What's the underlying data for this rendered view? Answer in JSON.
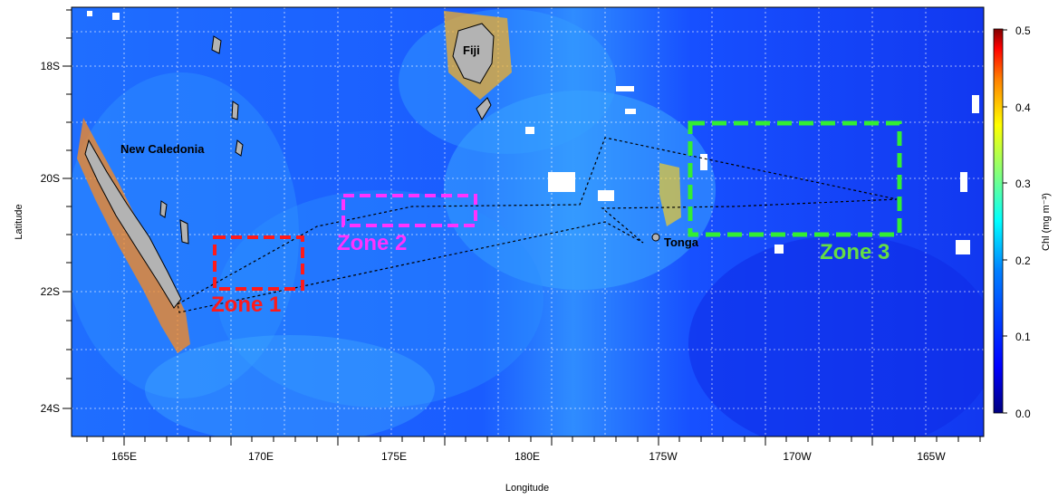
{
  "map": {
    "xlabel": "Longitude",
    "ylabel": "Latitude",
    "lon_ticks": [
      "165E",
      "170E",
      "175E",
      "180E",
      "175W",
      "170W",
      "165W"
    ],
    "lat_ticks": [
      "18S",
      "20S",
      "22S",
      "24S"
    ],
    "colorbar": {
      "label": "Chl (mg m⁻³)",
      "ticks": [
        "0.5",
        "0.4",
        "0.3",
        "0.2",
        "0.1",
        "0.0"
      ],
      "range": [
        0.0,
        0.5
      ],
      "colors": [
        "#00007f",
        "#0000ff",
        "#007fff",
        "#00ffff",
        "#7fff7f",
        "#ffff00",
        "#ff7f00",
        "#ff0000",
        "#7f0000"
      ]
    },
    "land_color": "#b3b3b3",
    "places": {
      "new_caledonia": "New Caledonia",
      "fiji": "Fiji",
      "tonga": "Tonga"
    },
    "zones": [
      {
        "label": "Zone 1",
        "color": "#ff1a1a"
      },
      {
        "label": "Zone 2",
        "color": "#ff33ff"
      },
      {
        "label": "Zone 3",
        "color": "#33ee33"
      }
    ]
  }
}
